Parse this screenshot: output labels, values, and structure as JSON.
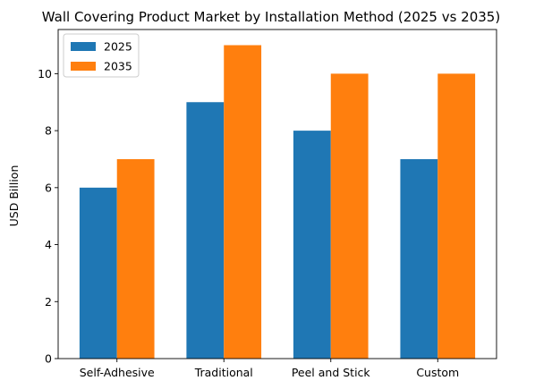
{
  "chart_data": {
    "type": "bar",
    "title": "Wall Covering Product Market by Installation Method (2025 vs 2035)",
    "xlabel": "",
    "ylabel": "USD Billion",
    "categories": [
      "Self-Adhesive",
      "Traditional",
      "Peel and Stick",
      "Custom"
    ],
    "series": [
      {
        "name": "2025",
        "values": [
          6,
          9,
          8,
          7
        ],
        "color": "#1f77b4"
      },
      {
        "name": "2035",
        "values": [
          7,
          11,
          10,
          10
        ],
        "color": "#ff7f0e"
      }
    ],
    "ylim": [
      0,
      11.55
    ],
    "yticks": [
      0,
      2,
      4,
      6,
      8,
      10
    ],
    "grid": false,
    "legend": "top-left"
  }
}
